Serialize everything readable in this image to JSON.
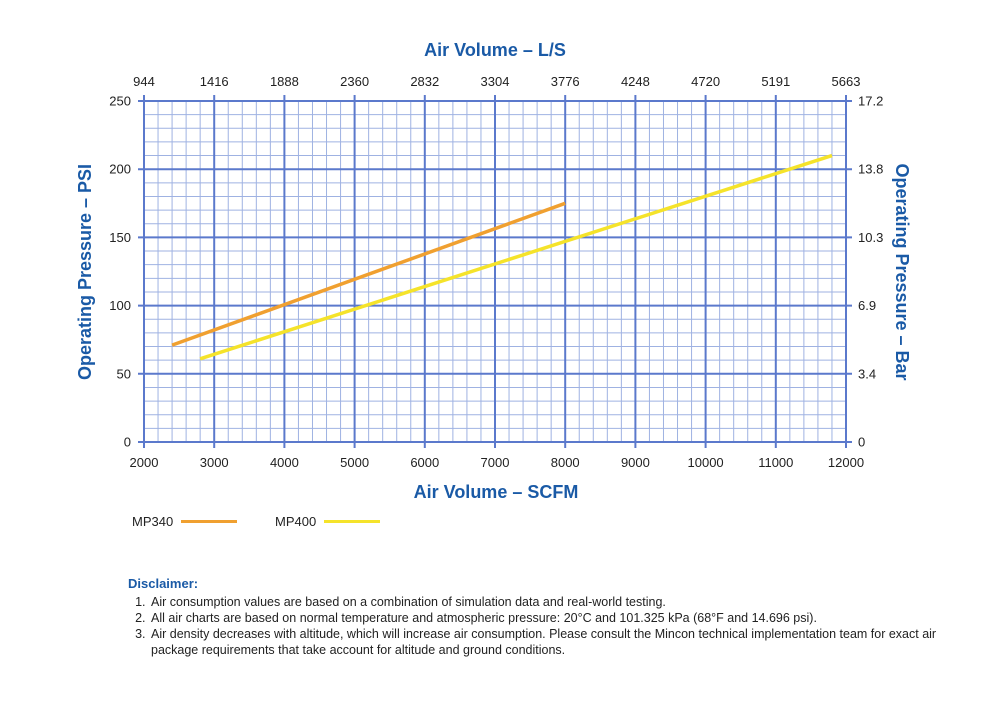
{
  "chart_data": {
    "type": "line",
    "top_axis_title": "Air Volume – L/S",
    "bottom_axis_title": "Air Volume – SCFM",
    "left_axis_title": "Operating Pressure – PSI",
    "right_axis_title": "Operating Pressure – Bar",
    "xlim": [
      2000,
      12000
    ],
    "ylim": [
      0,
      250
    ],
    "x_ticks": [
      "2000",
      "3000",
      "4000",
      "5000",
      "6000",
      "7000",
      "8000",
      "9000",
      "10000",
      "11000",
      "12000"
    ],
    "x_top_ticks": [
      "944",
      "1416",
      "1888",
      "2360",
      "2832",
      "3304",
      "3776",
      "4248",
      "4720",
      "5191",
      "5663"
    ],
    "y_ticks": [
      "0",
      "50",
      "100",
      "150",
      "200",
      "250"
    ],
    "y_right_ticks": [
      "0",
      "3.4",
      "6.9",
      "10.3",
      "13.8",
      "17.2"
    ],
    "grid": true,
    "series": [
      {
        "name": "MP340",
        "color": "#f0a030",
        "x": [
          2400,
          8000
        ],
        "y": [
          71,
          175
        ]
      },
      {
        "name": "MP400",
        "color": "#f5e32a",
        "x": [
          2800,
          11800
        ],
        "y": [
          61,
          210
        ]
      }
    ],
    "legend_position": "bottom-left"
  },
  "disclaimer": {
    "title": "Disclaimer:",
    "items": [
      "Air consumption values are based on a combination of simulation data and real-world testing.",
      "All air charts are based on normal temperature and atmospheric pressure: 20°C and 101.325 kPa (68°F and 14.696 psi).",
      "Air density decreases with altitude, which will increase air consumption. Please consult the Mincon technical implementation team for exact air package requirements that take account for altitude and ground conditions."
    ]
  }
}
